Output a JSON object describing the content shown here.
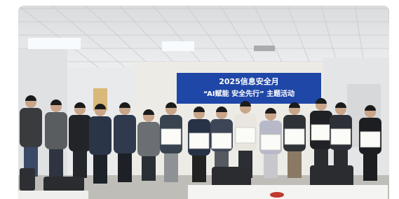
{
  "banner": {
    "title": "2025信息安全月",
    "subtitle": "“AI赋能 安全先行” 主题活动"
  }
}
